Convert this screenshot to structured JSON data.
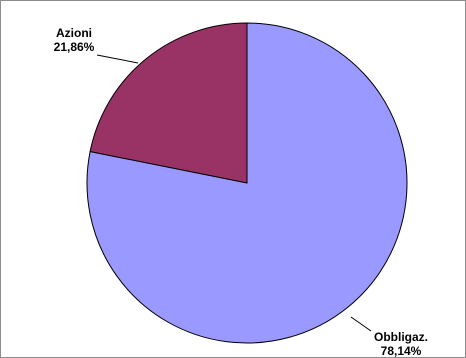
{
  "chart_data": {
    "type": "pie",
    "title": "",
    "slices": [
      {
        "label": "Azioni",
        "value_label": "21,86%",
        "value": 21.86,
        "color": "#993366"
      },
      {
        "label": "Obbligaz.",
        "value_label": "78,14%",
        "value": 78.14,
        "color": "#9999ff"
      }
    ],
    "start_angle_deg": 0,
    "direction": "counterclockwise",
    "legend": "none"
  },
  "colors": {
    "outline": "#000000",
    "frame": "#8c8c8c"
  }
}
